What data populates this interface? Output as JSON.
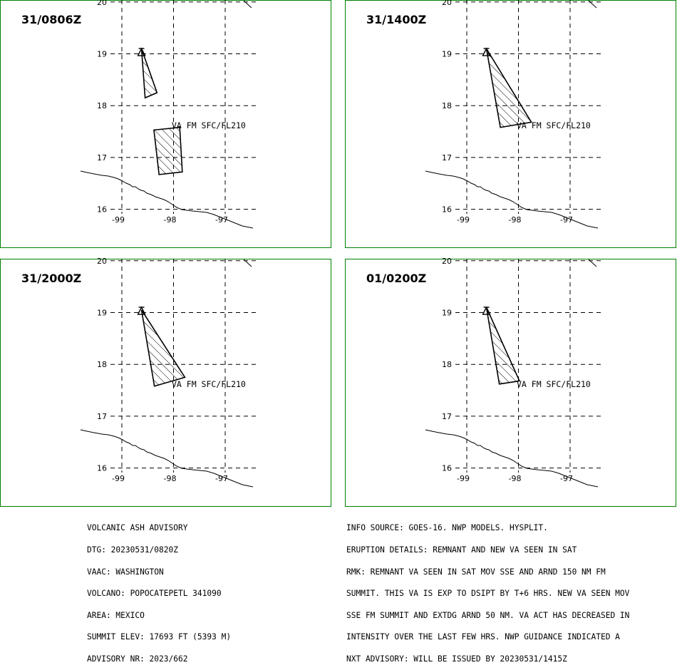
{
  "panels": [
    {
      "time": "31/0806Z",
      "label": "VA FM SFC/FL210",
      "polygons": [
        [
          [
            19.1,
            -98.62
          ],
          [
            18.25,
            -98.32
          ],
          [
            18.15,
            -98.55
          ]
        ],
        [
          [
            17.53,
            -98.38
          ],
          [
            17.58,
            -97.88
          ],
          [
            16.72,
            -97.83
          ],
          [
            16.67,
            -98.28
          ]
        ]
      ]
    },
    {
      "time": "31/1400Z",
      "label": "VA FM SFC/FL210",
      "polygons": [
        [
          [
            19.1,
            -98.62
          ],
          [
            17.68,
            -97.75
          ],
          [
            17.58,
            -98.35
          ]
        ]
      ]
    },
    {
      "time": "31/2000Z",
      "label": "VA FM SFC/FL210",
      "polygons": [
        [
          [
            19.05,
            -98.62
          ],
          [
            17.75,
            -97.78
          ],
          [
            17.58,
            -98.37
          ]
        ]
      ]
    },
    {
      "time": "01/0200Z",
      "label": "VA FM SFC/FL210",
      "polygons": [
        [
          [
            19.1,
            -98.62
          ],
          [
            17.68,
            -97.98
          ],
          [
            17.62,
            -98.37
          ]
        ]
      ]
    }
  ],
  "map": {
    "lat_ticks": [
      "20",
      "19",
      "18",
      "17",
      "16"
    ],
    "lat_values": [
      20,
      19,
      18,
      17,
      16
    ],
    "lon_ticks": [
      "-99",
      "-98",
      "-97"
    ],
    "lon_values": [
      -99,
      -98,
      -97
    ],
    "volcano": {
      "lat": 19.02,
      "lon": -98.62,
      "symbol": "triangle"
    },
    "colors": {
      "frame": "#008000",
      "ink": "#000000"
    }
  },
  "advisory_left": [
    "VOLCANIC ASH ADVISORY",
    "DTG: 20230531/0820Z",
    "VAAC: WASHINGTON",
    "VOLCANO: POPOCATEPETL 341090",
    "AREA: MEXICO",
    "SUMMIT ELEV: 17693 FT (5393 M)",
    "ADVISORY NR: 2023/662"
  ],
  "advisory_right": [
    "INFO SOURCE: GOES-16. NWP MODELS. HYSPLIT.",
    "ERUPTION DETAILS: REMNANT AND NEW VA SEEN IN SAT",
    "RMK: REMNANT VA SEEN IN SAT MOV SSE AND ARND 150 NM FM",
    "SUMMIT. THIS VA IS EXP TO DSIPT BY T+6 HRS. NEW VA SEEN MOV",
    "SSE FM SUMMIT AND EXTDG ARND 50 NM. VA ACT HAS DECREASED IN",
    "INTENSITY OVER THE LAST FEW HRS. NWP GUIDANCE INDICATED A",
    "NXT ADVISORY: WILL BE ISSUED BY 20230531/1415Z"
  ]
}
